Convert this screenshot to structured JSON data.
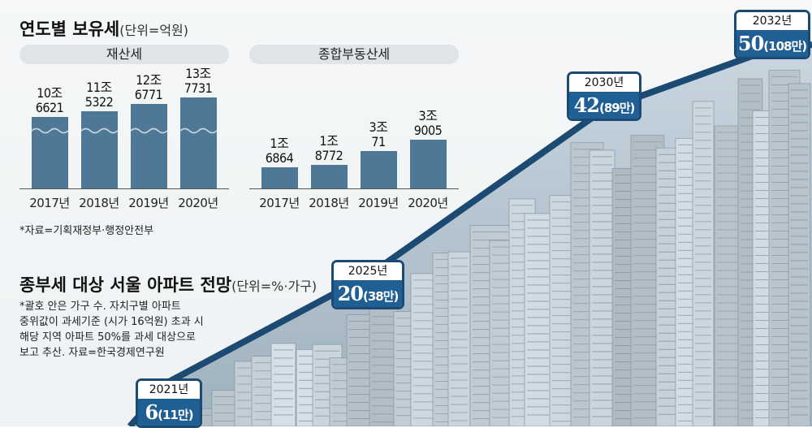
{
  "section1": {
    "title": "연도별 보유세",
    "unit": "(단위=억원)",
    "note": "*자료=기획재정부·행정안전부"
  },
  "chart_data": [
    {
      "type": "bar",
      "title": "재산세",
      "categories": [
        "2017년",
        "2018년",
        "2019년",
        "2020년"
      ],
      "values": [
        106621,
        115322,
        126771,
        137731
      ],
      "labels": [
        [
          "10조",
          "6621"
        ],
        [
          "11조",
          "5322"
        ],
        [
          "12조",
          "6771"
        ],
        [
          "13조",
          "7731"
        ]
      ],
      "broken_axis": true
    },
    {
      "type": "bar",
      "title": "종합부동산세",
      "categories": [
        "2017년",
        "2018년",
        "2019년",
        "2020년"
      ],
      "values": [
        16864,
        18772,
        30071,
        39005
      ],
      "labels": [
        [
          "1조",
          "6864"
        ],
        [
          "1조",
          "8772"
        ],
        [
          "3조",
          "71"
        ],
        [
          "3조",
          "9005"
        ]
      ]
    },
    {
      "type": "line",
      "title": "종부세 대상 서울 아파트 전망",
      "unit": "(단위=%·가구)",
      "x": [
        "2021년",
        "2025년",
        "2030년",
        "2032년"
      ],
      "values": [
        6,
        20,
        42,
        50
      ],
      "households": [
        "11만",
        "38만",
        "89만",
        "108만"
      ]
    }
  ],
  "section2": {
    "title": "종부세 대상 서울 아파트 전망",
    "unit": "(단위=%·가구)",
    "note_lines": [
      "*괄호 안은 가구 수. 자치구별 아파트",
      " 중위값이  과세기준 (시가 16억원) 초과 시",
      " 해당 지역 아파트 50%를 과세 대상으로",
      " 보고 추산. 자료=한국경제연구원"
    ]
  },
  "colors": {
    "bar": "#4f7896",
    "callout_border": "#1d4a73",
    "callout_fill": "#1f5f93",
    "line": "#1d4a73"
  }
}
